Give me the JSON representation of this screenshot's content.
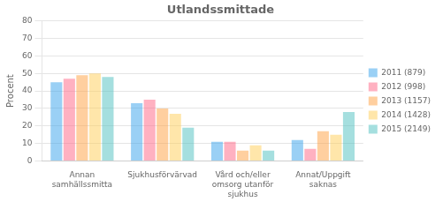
{
  "chart_data": {
    "type": "bar",
    "title": "Utlandssmittade",
    "ylabel": "Procent",
    "categories": [
      "Annan\nsamhällssmitta",
      "Sjukhusförvärvad",
      "Vård och/eller\nomsorg utanför\nsjukhus",
      "Annat/Uppgift\nsaknas"
    ],
    "series": [
      {
        "name": "2011 (879)",
        "values": [
          45,
          33,
          11,
          12
        ]
      },
      {
        "name": "2012 (998)",
        "values": [
          47,
          35,
          11,
          7
        ]
      },
      {
        "name": "2013 (1157)",
        "values": [
          49,
          30,
          6,
          17
        ]
      },
      {
        "name": "2014 (1428)",
        "values": [
          50,
          27,
          9,
          15
        ]
      },
      {
        "name": "2015 (2149)",
        "values": [
          48,
          19,
          6,
          28
        ]
      }
    ],
    "ylim": [
      0,
      80
    ],
    "yticks": [
      0,
      10,
      20,
      30,
      40,
      50,
      60,
      70,
      80
    ],
    "grid": true,
    "legend": "right"
  }
}
